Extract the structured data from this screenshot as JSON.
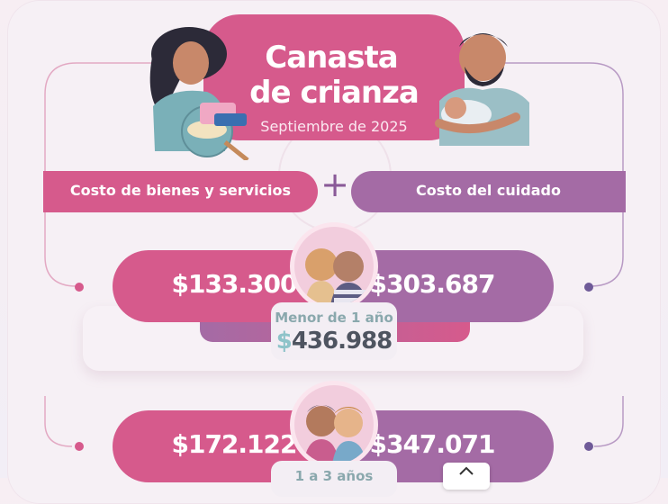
{
  "header": {
    "title_line1": "Canasta",
    "title_line2": "de crianza",
    "subtitle": "Septiembre de 2025"
  },
  "categories": {
    "left_label": "Costo de bienes y servicios",
    "right_label": "Costo del cuidado",
    "plus_symbol": "+"
  },
  "rows": [
    {
      "goods_cost": "$133.300",
      "care_cost": "$303.687",
      "age_label": "Menor de 1 año",
      "total_symbol": "$",
      "total_amount": "436.988"
    },
    {
      "goods_cost": "$172.122",
      "care_cost": "$347.071",
      "age_label": "1 a 3 años"
    }
  ],
  "colors": {
    "pink": "#d65a8c",
    "purple": "#a46ba5",
    "teal_label": "#8aa8ad",
    "total_text": "#4e5460"
  },
  "icons": {
    "scroll_up": "chevron-up-icon"
  }
}
